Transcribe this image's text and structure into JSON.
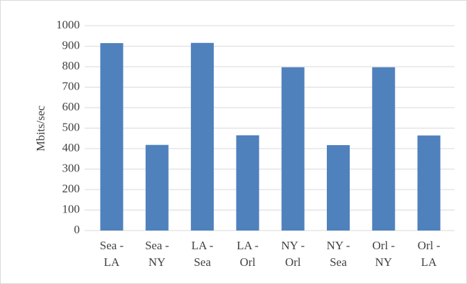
{
  "chart_data": {
    "type": "bar",
    "y_label": "Mbits/sec",
    "categories": [
      "Sea - LA",
      "Sea - NY",
      "LA - Sea",
      "LA - Orl",
      "NY - Orl",
      "NY - Sea",
      "Orl - NY",
      "Orl - LA"
    ],
    "values": [
      915,
      418,
      916,
      465,
      797,
      417,
      797,
      464
    ],
    "color": "#4f81bd",
    "ylim": [
      0,
      1000
    ],
    "yticks": [
      0,
      100,
      200,
      300,
      400,
      500,
      600,
      700,
      800,
      900,
      1000
    ],
    "grid": true
  }
}
